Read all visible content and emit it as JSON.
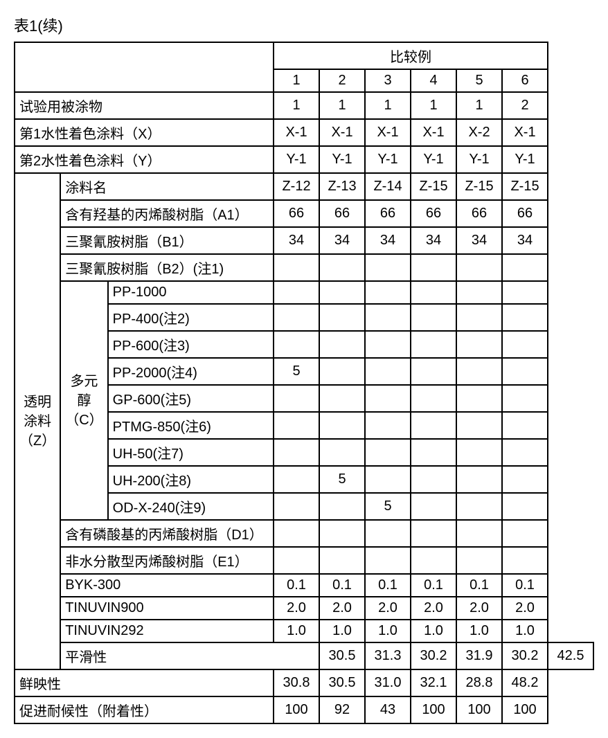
{
  "title": "表1(续)",
  "header_group": "比较例",
  "examples": [
    "1",
    "2",
    "3",
    "4",
    "5",
    "6"
  ],
  "rows": {
    "substrate": {
      "label": "试验用被涂物",
      "vals": [
        "1",
        "1",
        "1",
        "1",
        "1",
        "2"
      ]
    },
    "coatX": {
      "label": "第1水性着色涂料（X）",
      "vals": [
        "X-1",
        "X-1",
        "X-1",
        "X-1",
        "X-2",
        "X-1"
      ]
    },
    "coatY": {
      "label": "第2水性着色涂料（Y）",
      "vals": [
        "Y-1",
        "Y-1",
        "Y-1",
        "Y-1",
        "Y-1",
        "Y-1"
      ]
    }
  },
  "z_section_label": "透明涂料（Z）",
  "z_rows": {
    "name": {
      "label": "涂料名",
      "vals": [
        "Z-12",
        "Z-13",
        "Z-14",
        "Z-15",
        "Z-15",
        "Z-15"
      ]
    },
    "a1": {
      "label": "含有羟基的丙烯酸树脂（A1）",
      "vals": [
        "66",
        "66",
        "66",
        "66",
        "66",
        "66"
      ]
    },
    "b1": {
      "label": "三聚氰胺树脂（B1）",
      "vals": [
        "34",
        "34",
        "34",
        "34",
        "34",
        "34"
      ]
    },
    "b2": {
      "label": "三聚氰胺树脂（B2）(注1)",
      "vals": [
        "",
        "",
        "",
        "",
        "",
        ""
      ]
    },
    "d1": {
      "label": "含有磷酸基的丙烯酸树脂（D1）",
      "vals": [
        "",
        "",
        "",
        "",
        "",
        ""
      ]
    },
    "e1": {
      "label": "非水分散型丙烯酸树脂（E1）",
      "vals": [
        "",
        "",
        "",
        "",
        "",
        ""
      ]
    },
    "byk": {
      "label": "BYK-300",
      "vals": [
        "0.1",
        "0.1",
        "0.1",
        "0.1",
        "0.1",
        "0.1"
      ]
    },
    "t900": {
      "label": "TINUVIN900",
      "vals": [
        "2.0",
        "2.0",
        "2.0",
        "2.0",
        "2.0",
        "2.0"
      ]
    },
    "t292": {
      "label": "TINUVIN292",
      "vals": [
        "1.0",
        "1.0",
        "1.0",
        "1.0",
        "1.0",
        "1.0"
      ]
    }
  },
  "polyol_label": "多元醇（C）",
  "polyol_rows": {
    "pp1000": {
      "label": "PP-1000",
      "vals": [
        "",
        "",
        "",
        "",
        "",
        ""
      ]
    },
    "pp400": {
      "label": "PP-400(注2)",
      "vals": [
        "",
        "",
        "",
        "",
        "",
        ""
      ]
    },
    "pp600": {
      "label": "PP-600(注3)",
      "vals": [
        "",
        "",
        "",
        "",
        "",
        ""
      ]
    },
    "pp2000": {
      "label": "PP-2000(注4)",
      "vals": [
        "5",
        "",
        "",
        "",
        "",
        ""
      ]
    },
    "gp600": {
      "label": "GP-600(注5)",
      "vals": [
        "",
        "",
        "",
        "",
        "",
        ""
      ]
    },
    "ptmg850": {
      "label": "PTMG-850(注6)",
      "vals": [
        "",
        "",
        "",
        "",
        "",
        ""
      ]
    },
    "uh50": {
      "label": "UH-50(注7)",
      "vals": [
        "",
        "",
        "",
        "",
        "",
        ""
      ]
    },
    "uh200": {
      "label": "UH-200(注8)",
      "vals": [
        "",
        "5",
        "",
        "",
        "",
        ""
      ]
    },
    "odx240": {
      "label": "OD-X-240(注9)",
      "vals": [
        "",
        "",
        "5",
        "",
        "",
        ""
      ]
    }
  },
  "footer_rows": {
    "smooth": {
      "label": "平滑性",
      "vals": [
        "30.5",
        "31.3",
        "30.2",
        "31.9",
        "30.2",
        "42.5"
      ]
    },
    "sharp": {
      "label": "鲜映性",
      "vals": [
        "30.8",
        "30.5",
        "31.0",
        "32.1",
        "28.8",
        "48.2"
      ]
    },
    "weather": {
      "label": "促进耐候性（附着性）",
      "vals": [
        "100",
        "92",
        "43",
        "100",
        "100",
        "100"
      ]
    }
  },
  "colors": {
    "border": "#000000",
    "background": "#ffffff",
    "text": "#000000"
  }
}
